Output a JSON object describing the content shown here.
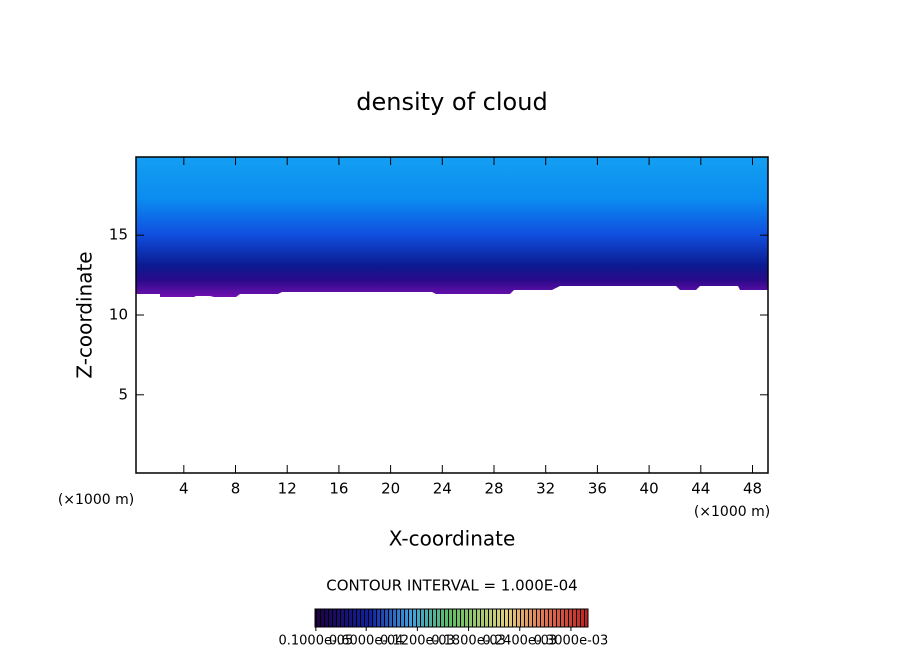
{
  "chart_data": {
    "type": "contour",
    "title": "density of cloud",
    "x_label": "X-coordinate",
    "y_label": "Z-coordinate",
    "x_unit": "(×1000 m)",
    "y_unit": "(×1000 m)",
    "xlim": [
      0.3,
      49.2
    ],
    "ylim": [
      0.1,
      19.9
    ],
    "xticks": [
      4,
      8,
      12,
      16,
      20,
      24,
      28,
      32,
      36,
      40,
      44,
      48
    ],
    "yticks": [
      5,
      10,
      15
    ],
    "contour_note": "CONTOUR INTERVAL = 1.000E-04",
    "colorbar_lim": [
      0,
      0.00032
    ],
    "colorbar_ticks": [
      {
        "value": 1e-06,
        "label": "0.1000e-05"
      },
      {
        "value": 6e-05,
        "label": "0.6000e-04"
      },
      {
        "value": 0.00012,
        "label": "0.1200e-03"
      },
      {
        "value": 0.00018,
        "label": "0.1800e-03"
      },
      {
        "value": 0.00024,
        "label": "0.2400e-03"
      },
      {
        "value": 0.0003,
        "label": "0.3000e-03"
      }
    ]
  }
}
